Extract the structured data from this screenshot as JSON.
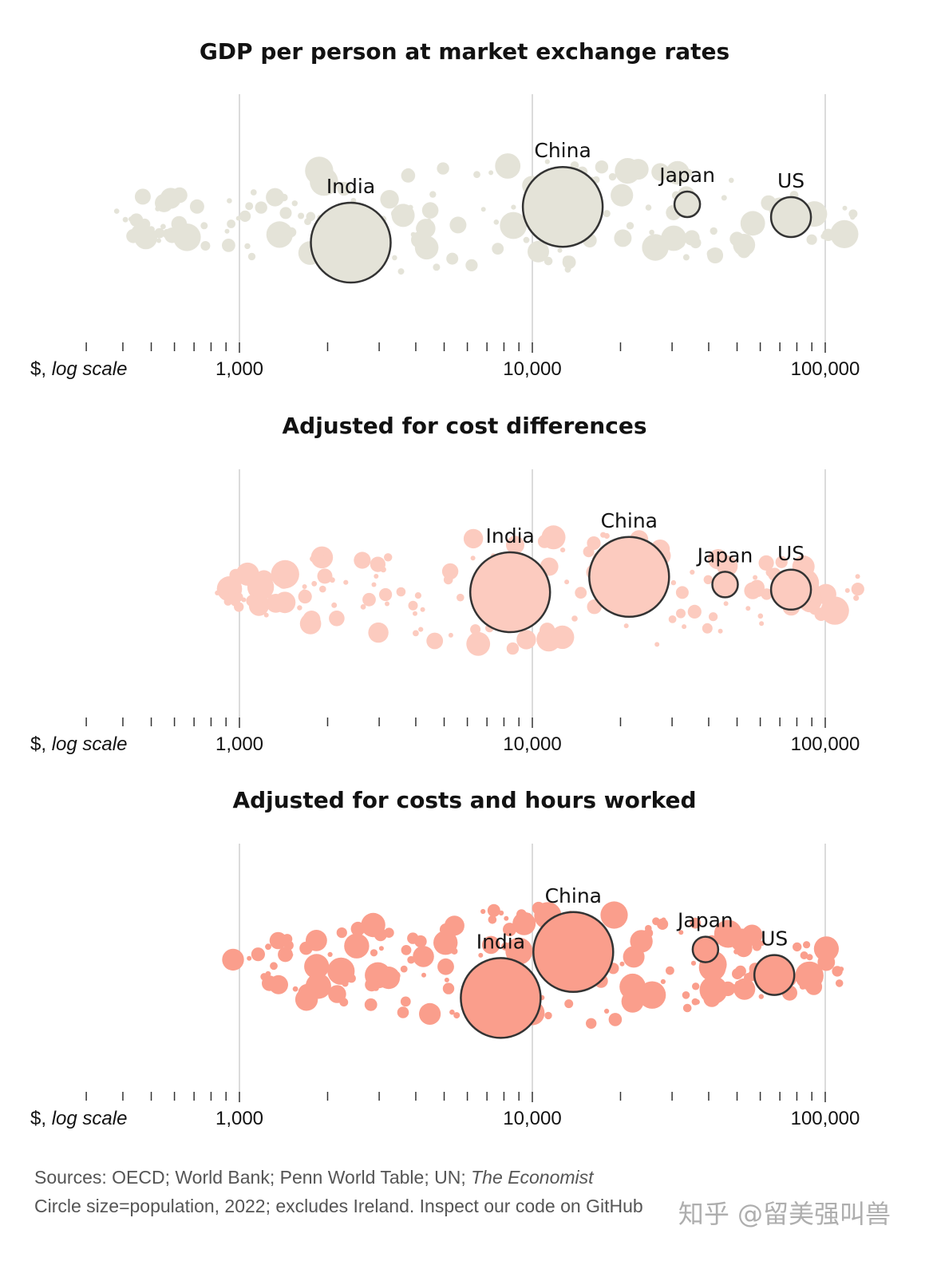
{
  "chart_data": {
    "type": "scatter",
    "subtype": "beeswarm",
    "xscale": "log",
    "xlim": [
      300,
      140000
    ],
    "xticks_major": [
      1000,
      10000,
      100000
    ],
    "xticks_major_labels": [
      "1,000",
      "10,000",
      "100,000"
    ],
    "xticks_minor": [
      400,
      500,
      600,
      700,
      800,
      900,
      2000,
      3000,
      4000,
      5000,
      6000,
      7000,
      8000,
      9000,
      20000,
      30000,
      40000,
      50000,
      60000,
      70000,
      80000,
      90000
    ],
    "xlabel_prefix": "$,",
    "xlabel_italic": "log scale",
    "panels": [
      {
        "title": "GDP per person at market exchange rates",
        "fill": "#e4e3d8",
        "highlight": [
          {
            "name": "India",
            "gdp": 2400,
            "offset": 0.1,
            "radius_rank": 2
          },
          {
            "name": "China",
            "gdp": 12700,
            "offset": -0.04,
            "radius_rank": 1
          },
          {
            "name": "Japan",
            "gdp": 33800,
            "offset": -0.05,
            "radius_rank": 4
          },
          {
            "name": "US",
            "gdp": 76400,
            "offset": 0.0,
            "radius_rank": 3
          }
        ]
      },
      {
        "title": "Adjusted for cost differences",
        "fill": "#fccbbf",
        "highlight": [
          {
            "name": "India",
            "gdp": 8400,
            "offset": 0.0,
            "radius_rank": 2
          },
          {
            "name": "China",
            "gdp": 21400,
            "offset": -0.06,
            "radius_rank": 1
          },
          {
            "name": "Japan",
            "gdp": 45500,
            "offset": -0.03,
            "radius_rank": 4
          },
          {
            "name": "US",
            "gdp": 76400,
            "offset": -0.01,
            "radius_rank": 3
          }
        ]
      },
      {
        "title": "Adjusted for costs and hours worked",
        "fill": "#fa9e8c",
        "highlight": [
          {
            "name": "India",
            "gdp": 7800,
            "offset": 0.12,
            "radius_rank": 2
          },
          {
            "name": "China",
            "gdp": 13800,
            "offset": -0.06,
            "radius_rank": 1
          },
          {
            "name": "Japan",
            "gdp": 39000,
            "offset": -0.07,
            "radius_rank": 4
          },
          {
            "name": "US",
            "gdp": 67000,
            "offset": 0.03,
            "radius_rank": 3
          }
        ]
      }
    ]
  },
  "footer": {
    "sources_prefix": "Sources: OECD; World Bank; Penn World Table; UN; ",
    "sources_italic": "The Economist",
    "note": "Circle size=population, 2022; excludes Ireland. Inspect our code on GitHub"
  },
  "watermark": "知乎 @留美强叫兽",
  "colors": {
    "panel1_fill": "#e4e3d8",
    "panel2_fill": "#fccbbf",
    "panel3_fill": "#fa9e8c",
    "outline": "#333333",
    "gridline": "#cfcfcf"
  }
}
